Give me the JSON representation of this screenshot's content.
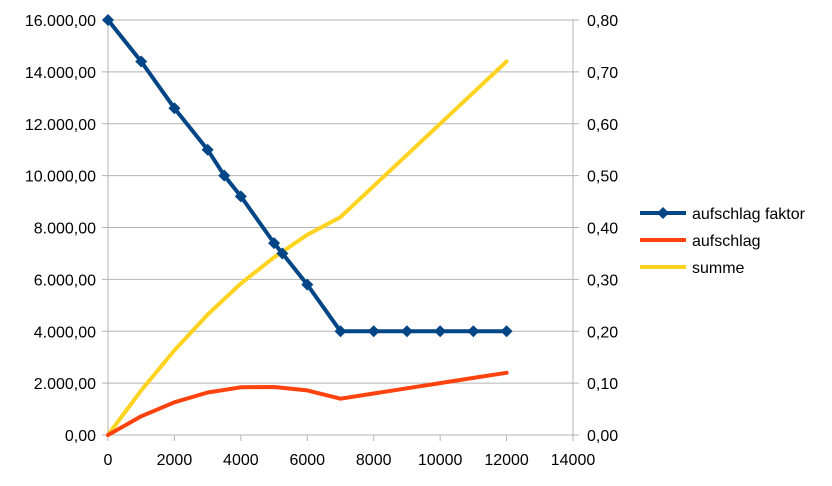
{
  "chart_data": {
    "type": "line",
    "title": "",
    "xlabel": "",
    "ylabel": "",
    "xlim": [
      0,
      14000
    ],
    "x_ticks": [
      "0",
      "2000",
      "4000",
      "6000",
      "8000",
      "10000",
      "12000",
      "14000"
    ],
    "x_tick_values": [
      0,
      2000,
      4000,
      6000,
      8000,
      10000,
      12000,
      14000
    ],
    "y_left": {
      "lim": [
        0,
        16000
      ],
      "ticks": [
        "0,00",
        "2.000,00",
        "4.000,00",
        "6.000,00",
        "8.000,00",
        "10.000,00",
        "12.000,00",
        "14.000,00",
        "16.000,00"
      ],
      "tick_values": [
        0,
        2000,
        4000,
        6000,
        8000,
        10000,
        12000,
        14000,
        16000
      ]
    },
    "y_right": {
      "lim": [
        0,
        0.8
      ],
      "ticks": [
        "0,00",
        "0,10",
        "0,20",
        "0,30",
        "0,40",
        "0,50",
        "0,60",
        "0,70",
        "0,80"
      ],
      "tick_values": [
        0,
        0.1,
        0.2,
        0.3,
        0.4,
        0.5,
        0.6,
        0.7,
        0.8
      ]
    },
    "grid": true,
    "legend_position": "right",
    "series": [
      {
        "name": "aufschlag faktor",
        "axis": "right",
        "color": "#004586",
        "marker": "diamond",
        "x": [
          0,
          1000,
          2000,
          3000,
          3500,
          4000,
          5000,
          5250,
          6000,
          7000,
          8000,
          9000,
          10000,
          11000,
          12000
        ],
        "values": [
          0.8,
          0.72,
          0.63,
          0.55,
          0.5,
          0.46,
          0.37,
          0.35,
          0.29,
          0.2,
          0.2,
          0.2,
          0.2,
          0.2,
          0.2
        ]
      },
      {
        "name": "aufschlag",
        "axis": "left",
        "color": "#ff420e",
        "marker": "none",
        "x": [
          0,
          1000,
          2000,
          3000,
          4000,
          5000,
          6000,
          7000,
          8000,
          9000,
          10000,
          11000,
          12000
        ],
        "values": [
          0,
          720,
          1260,
          1640,
          1840,
          1850,
          1720,
          1400,
          1600,
          1800,
          2000,
          2200,
          2400
        ]
      },
      {
        "name": "summe",
        "axis": "left",
        "color": "#ffd320",
        "marker": "none",
        "x": [
          0,
          1000,
          2000,
          3000,
          4000,
          5000,
          6000,
          7000,
          8000,
          9000,
          10000,
          11000,
          12000
        ],
        "values": [
          0,
          1720,
          3260,
          4640,
          5840,
          6850,
          7720,
          8400,
          9600,
          10800,
          12000,
          13200,
          14400
        ]
      }
    ]
  }
}
